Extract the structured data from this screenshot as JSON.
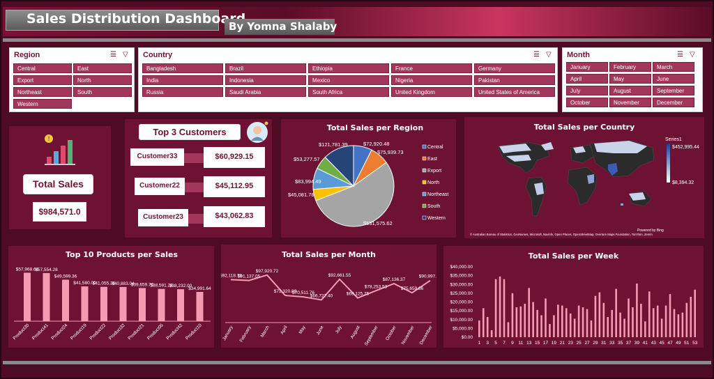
{
  "header": {
    "title": "Sales Distribution Dashboard",
    "author": "By Yomna Shalaby"
  },
  "colors": {
    "background": "#4f0a24",
    "panel": "#6d1233",
    "slicer_button": "#a3375b",
    "bar": "#f29bb3"
  },
  "region_slicer": {
    "title": "Region",
    "items": [
      "Central",
      "East",
      "Export",
      "North",
      "Northeast",
      "South",
      "Western"
    ]
  },
  "country_slicer": {
    "title": "Country",
    "items": [
      "Bangladesh",
      "Brazil",
      "Ethiopia",
      "France",
      "Germany",
      "India",
      "Indonesia",
      "Mexico",
      "Nigeria",
      "Pakistan",
      "Russia",
      "Saudi Arabia",
      "South Africa",
      "United Kingdom",
      "United States of America"
    ]
  },
  "month_slicer": {
    "title": "Month",
    "items": [
      "January",
      "February",
      "March",
      "April",
      "May",
      "June",
      "July",
      "August",
      "September",
      "October",
      "November",
      "December"
    ]
  },
  "kpi": {
    "label": "Total Sales",
    "value": "$984,571.0"
  },
  "top_customers": {
    "title": "Top 3 Customers",
    "items": [
      {
        "name": "Customer33",
        "value": "$60,929.15"
      },
      {
        "name": "Customer22",
        "value": "$45,112.95"
      },
      {
        "name": "Customer23",
        "value": "$43,062.83"
      }
    ]
  },
  "map": {
    "title": "Total Sales per Country",
    "legend_title": "Series1",
    "legend_max": "$452,995.44",
    "legend_min": "$8,394.32",
    "powered": "Powered by Bing",
    "attribution": "© Australian Bureau of Statistics, GeoNames, Microsoft, Navinfo, Open Places, OpenStreetMap, Overture Maps Foundation, TomTom, Zenrin"
  },
  "chart_data": [
    {
      "type": "pie",
      "title": "Total Sales per Region",
      "labels": [
        "Central",
        "East",
        "Export",
        "North",
        "Northeast",
        "South",
        "Western"
      ],
      "values": [
        72920.48,
        75939.73,
        531575.62,
        45081.78,
        83994.49,
        53277.57,
        121781.39
      ],
      "value_labels": [
        "$72,920.48",
        "$75,939.73",
        "$531,575.62",
        "$45,081.78",
        "$83,994.49",
        "$53,277.57",
        "$121,781.39"
      ],
      "colors": [
        "#4472c4",
        "#ed7d31",
        "#a5a5a5",
        "#ffc000",
        "#5b9bd5",
        "#70ad47",
        "#264478"
      ],
      "legend": "right"
    },
    {
      "type": "bar",
      "title": "Top 10 Products per Sales",
      "categories": [
        "Product30",
        "Product41",
        "Product24",
        "Product19",
        "Product22",
        "Product32",
        "Product21",
        "Product05",
        "Product42",
        "Product10"
      ],
      "values": [
        57968.64,
        57554.28,
        49599.36,
        41580.0,
        41055.36,
        40883.04,
        39659.76,
        38591.28,
        38232.0,
        34991.64
      ],
      "value_labels": [
        "$57,968.64",
        "$57,554.28",
        "$49,599.36",
        "$41,580.00",
        "$41,055.36",
        "$40,883.04",
        "$39,659.76",
        "$38,591.28",
        "$38,232.00",
        "$34,991.64"
      ],
      "ylim": [
        0,
        60000
      ]
    },
    {
      "type": "line",
      "title": "Total Sales per Month",
      "categories": [
        "January",
        "February",
        "March",
        "April",
        "May",
        "June",
        "July",
        "August",
        "September",
        "October",
        "November",
        "December"
      ],
      "values": [
        92118.78,
        91137.05,
        97920.72,
        72320.89,
        70511.76,
        66727.4,
        92661.55,
        69125.75,
        78253.53,
        87136.37,
        75659.86,
        90997.39
      ],
      "value_labels": [
        "$92,118.78",
        "$91,137.05",
        "$97,920.72",
        "$72,320.89",
        "$70,511.76",
        "$66,727.40",
        "$92,661.55",
        "$69,125.75",
        "$78,253.53",
        "$87,136.37",
        "$75,659.86",
        "$90,997.39"
      ],
      "ylim": [
        40000,
        110000
      ]
    },
    {
      "type": "bar",
      "title": "Total Sales per Week",
      "x": [
        1,
        2,
        3,
        4,
        5,
        6,
        7,
        8,
        9,
        10,
        11,
        12,
        13,
        14,
        15,
        16,
        17,
        18,
        19,
        20,
        21,
        22,
        23,
        24,
        25,
        26,
        27,
        28,
        29,
        30,
        31,
        32,
        33,
        34,
        35,
        36,
        37,
        38,
        39,
        40,
        41,
        42,
        43,
        44,
        45,
        46,
        47,
        48,
        49,
        50,
        51,
        52,
        53
      ],
      "values": [
        9500,
        16500,
        11500,
        4000,
        33000,
        34500,
        33000,
        8500,
        25000,
        17000,
        17500,
        19000,
        28000,
        20000,
        15500,
        12500,
        22000,
        7500,
        12500,
        18500,
        18000,
        16500,
        13500,
        10500,
        18000,
        17000,
        16000,
        9500,
        23500,
        25500,
        19500,
        11500,
        15500,
        27500,
        14000,
        10500,
        22000,
        17000,
        30500,
        19000,
        9000,
        26000,
        16500,
        18000,
        10500,
        18000,
        24500,
        16000,
        13000,
        14000,
        19500,
        23000,
        27000
      ],
      "x_tick_labels": [
        "1",
        "3",
        "5",
        "7",
        "9",
        "11",
        "13",
        "15",
        "17",
        "19",
        "21",
        "23",
        "25",
        "27",
        "29",
        "31",
        "33",
        "35",
        "37",
        "39",
        "41",
        "43",
        "45",
        "47",
        "49",
        "51",
        "53"
      ],
      "y_ticks": [
        "$0.00",
        "$5,000.00",
        "$10,000.00",
        "$15,000.00",
        "$20,000.00",
        "$25,000.00",
        "$30,000.00",
        "$35,000.00",
        "$40,000.00"
      ],
      "ylim": [
        0,
        40000
      ]
    }
  ]
}
